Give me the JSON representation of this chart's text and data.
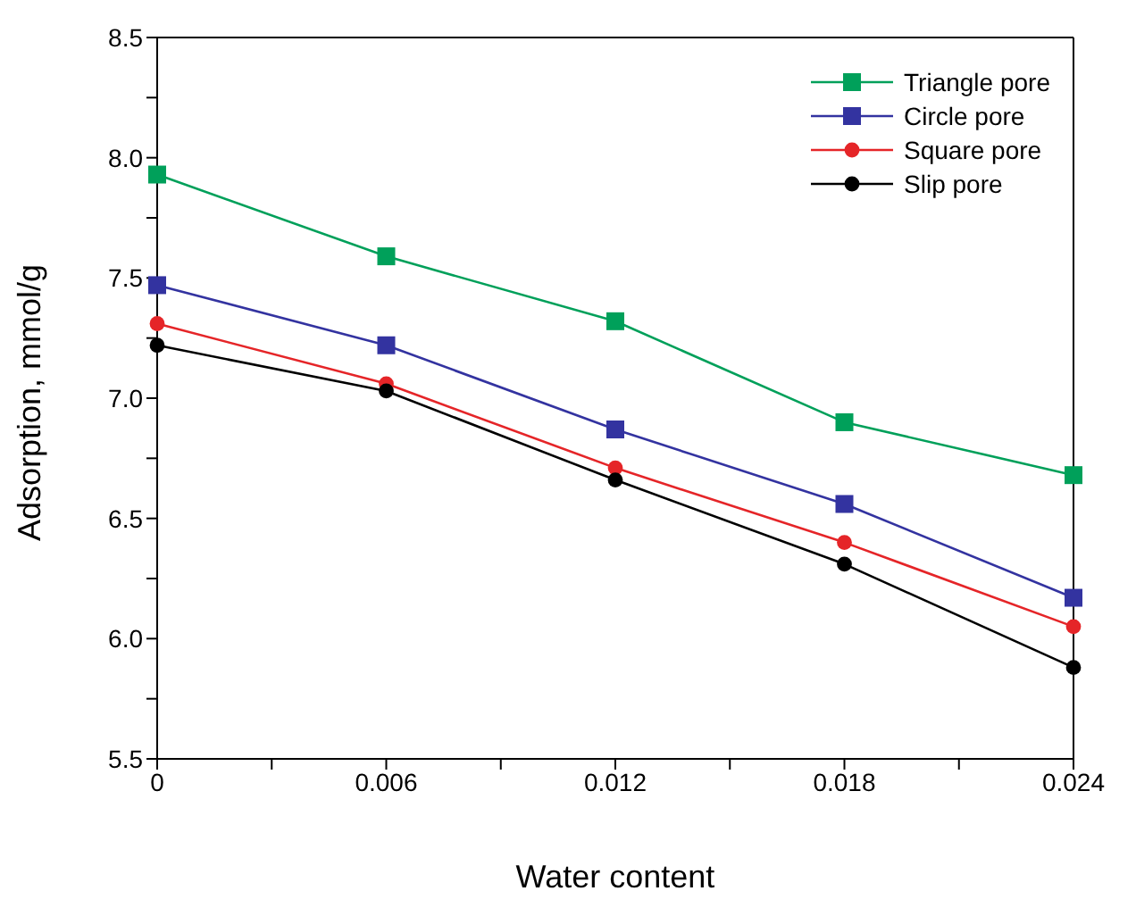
{
  "chart_data": {
    "type": "line",
    "xlabel": "Water content",
    "ylabel": "Adsorption, mmol/g",
    "x": [
      0,
      0.006,
      0.012,
      0.018,
      0.024
    ],
    "series": [
      {
        "name": "Triangle pore",
        "color": "#00a05a",
        "marker": "square",
        "values": [
          7.93,
          7.59,
          7.32,
          6.9,
          6.68
        ]
      },
      {
        "name": "Circle pore",
        "color": "#3333a0",
        "marker": "square",
        "values": [
          7.47,
          7.22,
          6.87,
          6.56,
          6.17
        ]
      },
      {
        "name": "Square pore",
        "color": "#e52528",
        "marker": "circle",
        "values": [
          7.31,
          7.06,
          6.71,
          6.4,
          6.05
        ]
      },
      {
        "name": "Slip pore",
        "color": "#000000",
        "marker": "circle",
        "values": [
          7.22,
          7.03,
          6.66,
          6.31,
          5.88
        ]
      }
    ],
    "xlim": [
      0,
      0.024
    ],
    "xticks": [
      0,
      {
        "value": 0.003,
        "label": null
      },
      0.006,
      {
        "value": 0.009,
        "label": null
      },
      0.012,
      {
        "value": 0.015,
        "label": null
      },
      0.018,
      {
        "value": 0.021,
        "label": null
      },
      0.024
    ],
    "ylim": [
      5.5,
      8.5
    ],
    "yticks": [
      {
        "value": 5.5,
        "label": "5.5"
      },
      {
        "value": 5.75,
        "label": null
      },
      {
        "value": 6,
        "label": "6.0"
      },
      {
        "value": 6.25,
        "label": null
      },
      {
        "value": 6.5,
        "label": "6.5"
      },
      {
        "value": 6.75,
        "label": null
      },
      {
        "value": 7,
        "label": "7.0"
      },
      {
        "value": 7.25,
        "label": null
      },
      {
        "value": 7.5,
        "label": "7.5"
      },
      {
        "value": 7.75,
        "label": null
      },
      {
        "value": 8,
        "label": "8.0"
      },
      {
        "value": 8.25,
        "label": null
      },
      {
        "value": 8.5,
        "label": "8.5"
      }
    ],
    "grid": false,
    "legend": "top right",
    "line_style": "solid"
  }
}
